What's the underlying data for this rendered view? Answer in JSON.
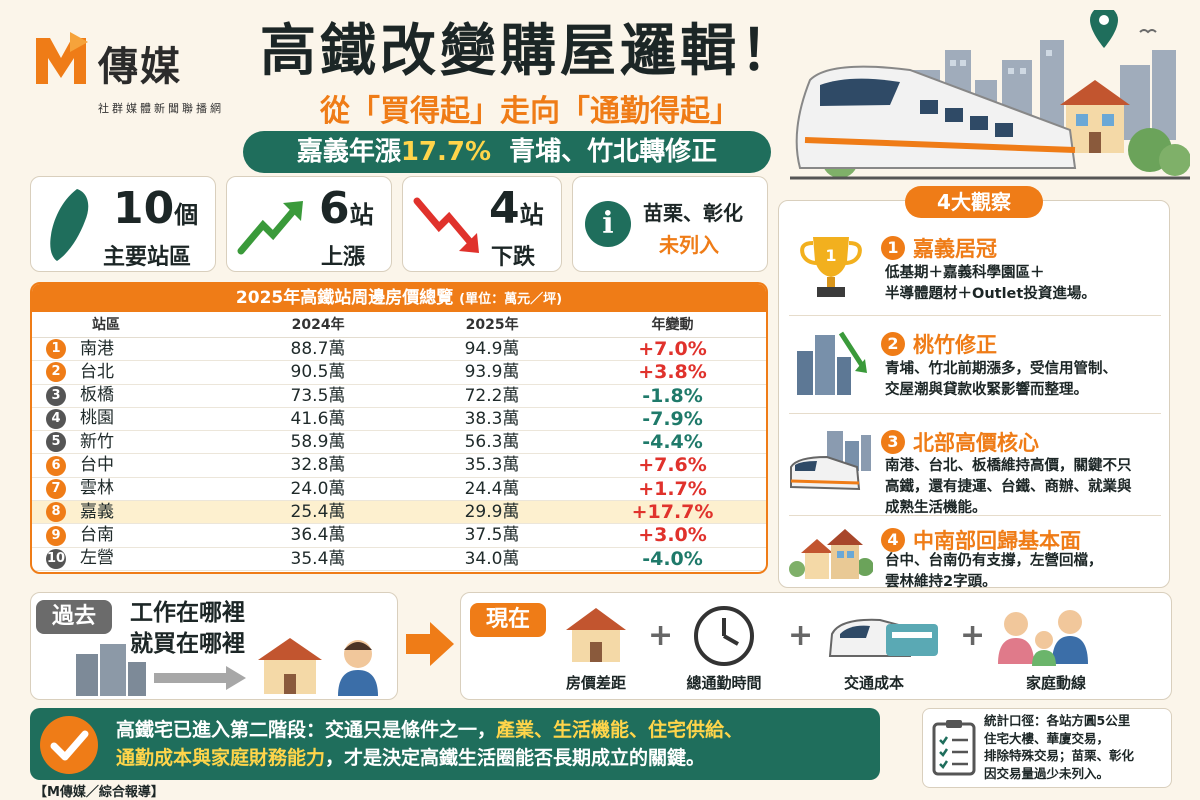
{
  "brand": {
    "name": "傳媒",
    "sub": "社群媒體新聞聯播網"
  },
  "header": {
    "title": "高鐵改變購屋邏輯！",
    "subtitle": "從「買得起」走向「通勤得起」",
    "banner_pre": "嘉義年漲",
    "banner_hl": "17.7%",
    "banner_post": "青埔、竹北轉修正"
  },
  "stats": [
    {
      "num": "10",
      "unit": "個",
      "label": "主要站區"
    },
    {
      "num": "6",
      "unit": "站",
      "label": "上漲"
    },
    {
      "num": "4",
      "unit": "站",
      "label": "下跌"
    },
    {
      "line1": "苗栗、彰化",
      "line2": "未列入"
    }
  ],
  "table": {
    "title": "2025年高鐵站周邊房價總覽",
    "unit": "(單位：萬元／坪)",
    "columns": [
      "站區",
      "2024年",
      "2025年",
      "年變動"
    ],
    "rows": [
      {
        "rank": "1",
        "station": "南港",
        "y2024": "88.7萬",
        "y2025": "94.9萬",
        "change": "+7.0%",
        "dir": "up"
      },
      {
        "rank": "2",
        "station": "台北",
        "y2024": "90.5萬",
        "y2025": "93.9萬",
        "change": "+3.8%",
        "dir": "up"
      },
      {
        "rank": "3",
        "station": "板橋",
        "y2024": "73.5萬",
        "y2025": "72.2萬",
        "change": "-1.8%",
        "dir": "down"
      },
      {
        "rank": "4",
        "station": "桃園",
        "y2024": "41.6萬",
        "y2025": "38.3萬",
        "change": "-7.9%",
        "dir": "down"
      },
      {
        "rank": "5",
        "station": "新竹",
        "y2024": "58.9萬",
        "y2025": "56.3萬",
        "change": "-4.4%",
        "dir": "down"
      },
      {
        "rank": "6",
        "station": "台中",
        "y2024": "32.8萬",
        "y2025": "35.3萬",
        "change": "+7.6%",
        "dir": "up"
      },
      {
        "rank": "7",
        "station": "雲林",
        "y2024": "24.0萬",
        "y2025": "24.4萬",
        "change": "+1.7%",
        "dir": "up"
      },
      {
        "rank": "8",
        "station": "嘉義",
        "y2024": "25.4萬",
        "y2025": "29.9萬",
        "change": "+17.7%",
        "dir": "up",
        "highlight": true
      },
      {
        "rank": "9",
        "station": "台南",
        "y2024": "36.4萬",
        "y2025": "37.5萬",
        "change": "+3.0%",
        "dir": "up"
      },
      {
        "rank": "10",
        "station": "左營",
        "y2024": "35.4萬",
        "y2025": "34.0萬",
        "change": "-4.0%",
        "dir": "down"
      }
    ]
  },
  "observations": {
    "title": "4大觀察",
    "items": [
      {
        "num": "1",
        "heading": "嘉義居冠",
        "text": "低基期＋嘉義科學園區＋\n半導體題材＋Outlet投資進場。"
      },
      {
        "num": "2",
        "heading": "桃竹修正",
        "text": "青埔、竹北前期漲多，受信用管制、\n交屋潮與貸款收緊影響而整理。"
      },
      {
        "num": "3",
        "heading": "北部高價核心",
        "text": "南港、台北、板橋維持高價，關鍵不只\n高鐵，還有捷運、台鐵、商辦、就業與\n成熟生活機能。"
      },
      {
        "num": "4",
        "heading": "中南部回歸基本面",
        "text": "台中、台南仍有支撐，左營回檔，\n雲林維持2字頭。"
      }
    ]
  },
  "past": {
    "tag": "過去",
    "line1": "工作在哪裡",
    "line2": "就買在哪裡"
  },
  "now": {
    "tag": "現在",
    "items": [
      "房價差距",
      "總通勤時間",
      "交通成本",
      "家庭動線"
    ]
  },
  "bottom": {
    "pre": "高鐵宅已進入第二階段：交通只是條件之一，",
    "hl1": "產業、生活機能、住宅供給、",
    "hl2": "通勤成本與家庭財務能力",
    "post": "，才是決定高鐵生活圈能否長期成立的關鍵。"
  },
  "note": {
    "text": "統計口徑：各站方圓5公里\n住宅大樓、華廈交易，\n排除特殊交易；苗栗、彰化\n因交易量過少未列入。"
  },
  "credit": "【M傳媒／綜合報導】",
  "colors": {
    "orange": "#ef7c17",
    "green": "#1f6e5c",
    "up": "#e0322c",
    "down": "#1f7a6a"
  }
}
